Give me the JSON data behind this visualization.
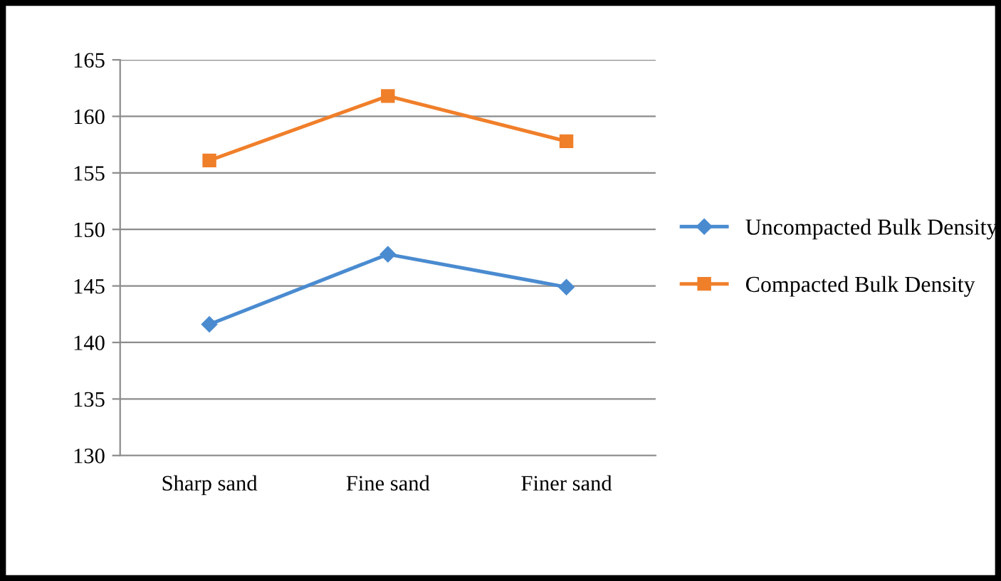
{
  "chart_data": {
    "type": "line",
    "categories": [
      "Sharp sand",
      "Fine sand",
      "Finer sand"
    ],
    "series": [
      {
        "name": "Uncompacted Bulk Density",
        "color": "#4a8bd0",
        "marker": "diamond",
        "values": [
          141.6,
          147.8,
          144.9
        ]
      },
      {
        "name": "Compacted Bulk Density",
        "color": "#f07f2a",
        "marker": "square",
        "values": [
          156.1,
          161.8,
          157.8
        ]
      }
    ],
    "ylim": [
      130,
      165
    ],
    "yticks": [
      130,
      135,
      140,
      145,
      150,
      155,
      160,
      165
    ],
    "grid": "y",
    "legend": "right",
    "line_style": "solid"
  }
}
